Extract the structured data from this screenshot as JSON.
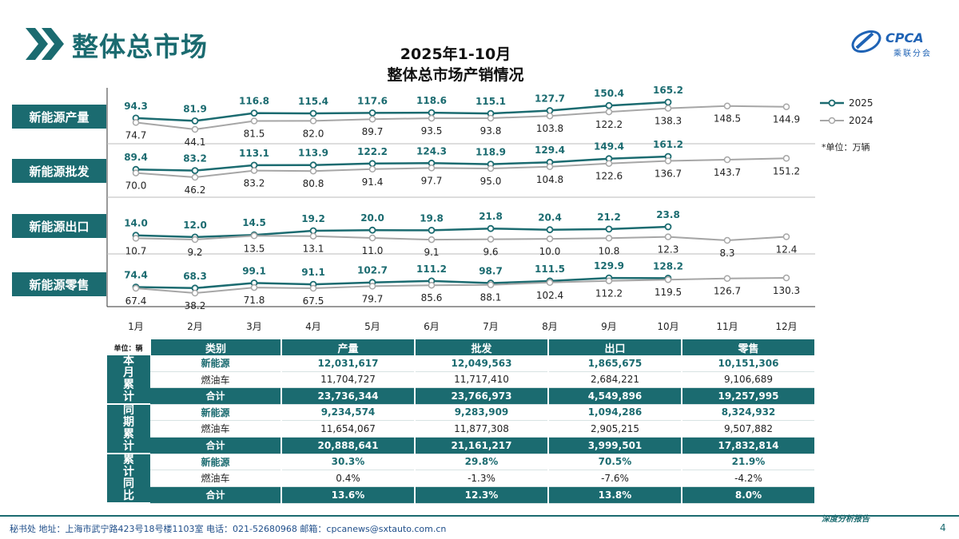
{
  "page": {
    "title": "整体总市场",
    "logo_text": "CPCA",
    "logo_sub": "乘联分会",
    "page_number": "4",
    "footer_text": "秘书处   地址：上海市武宁路423号18号楼1103室   电话：021-52680968   邮箱：cpcanews@sxtauto.com.cn",
    "footer_right": "深度分析报告"
  },
  "colors": {
    "primary": "#1b6b70",
    "series_2025": "#1b6b70",
    "series_2024": "#a6a6a6"
  },
  "chart_data": {
    "type": "line",
    "title_line1": "2025年1-10月",
    "title_line2": "整体总市场产销情况",
    "unit_note": "*单位：万辆",
    "categories": [
      "1月",
      "2月",
      "3月",
      "4月",
      "5月",
      "6月",
      "7月",
      "8月",
      "9月",
      "10月",
      "11月",
      "12月"
    ],
    "legend": [
      "2025",
      "2024"
    ],
    "panels": [
      {
        "label": "新能源产量",
        "series": [
          {
            "name": "2025",
            "values": [
              94.3,
              81.9,
              116.8,
              115.4,
              117.6,
              118.6,
              115.1,
              127.7,
              150.4,
              165.2
            ]
          },
          {
            "name": "2024",
            "values": [
              74.7,
              44.1,
              81.5,
              82.0,
              89.7,
              93.5,
              93.8,
              103.8,
              122.2,
              138.3,
              148.5,
              144.9
            ]
          }
        ]
      },
      {
        "label": "新能源批发",
        "series": [
          {
            "name": "2025",
            "values": [
              89.4,
              83.2,
              113.1,
              113.9,
              122.2,
              124.3,
              118.9,
              129.4,
              149.4,
              161.2
            ]
          },
          {
            "name": "2024",
            "values": [
              70.0,
              46.2,
              83.2,
              80.8,
              91.4,
              97.7,
              95.0,
              104.8,
              122.6,
              136.7,
              143.7,
              151.2
            ]
          }
        ]
      },
      {
        "label": "新能源出口",
        "series": [
          {
            "name": "2025",
            "values": [
              14.0,
              12.0,
              14.5,
              19.2,
              20.0,
              19.8,
              21.8,
              20.4,
              21.2,
              23.8
            ]
          },
          {
            "name": "2024",
            "values": [
              10.7,
              9.2,
              13.5,
              13.1,
              11.0,
              9.1,
              9.6,
              10.0,
              10.8,
              12.3,
              8.3,
              12.4
            ]
          }
        ]
      },
      {
        "label": "新能源零售",
        "series": [
          {
            "name": "2025",
            "values": [
              74.4,
              68.3,
              99.1,
              91.1,
              102.7,
              111.2,
              98.7,
              111.5,
              129.9,
              128.2
            ]
          },
          {
            "name": "2024",
            "values": [
              67.4,
              38.2,
              71.8,
              67.5,
              79.7,
              85.6,
              88.1,
              102.4,
              112.2,
              119.5,
              126.7,
              130.3
            ]
          }
        ]
      }
    ]
  },
  "table": {
    "unit": "单位：辆",
    "headers": [
      "类别",
      "产量",
      "批发",
      "出口",
      "零售"
    ],
    "groups": [
      {
        "label": "本月累计",
        "rows": [
          {
            "type": "新能源",
            "values": [
              "12,031,617",
              "12,049,563",
              "1,865,675",
              "10,151,306"
            ]
          },
          {
            "type": "燃油车",
            "values": [
              "11,704,727",
              "11,717,410",
              "2,684,221",
              "9,106,689"
            ]
          },
          {
            "type": "合计",
            "values": [
              "23,736,344",
              "23,766,973",
              "4,549,896",
              "19,257,995"
            ]
          }
        ]
      },
      {
        "label": "同期累计",
        "rows": [
          {
            "type": "新能源",
            "values": [
              "9,234,574",
              "9,283,909",
              "1,094,286",
              "8,324,932"
            ]
          },
          {
            "type": "燃油车",
            "values": [
              "11,654,067",
              "11,877,308",
              "2,905,215",
              "9,507,882"
            ]
          },
          {
            "type": "合计",
            "values": [
              "20,888,641",
              "21,161,217",
              "3,999,501",
              "17,832,814"
            ]
          }
        ]
      },
      {
        "label": "累计同比",
        "rows": [
          {
            "type": "新能源",
            "values": [
              "30.3%",
              "29.8%",
              "70.5%",
              "21.9%"
            ]
          },
          {
            "type": "燃油车",
            "values": [
              "0.4%",
              "-1.3%",
              "-7.6%",
              "-4.2%"
            ]
          },
          {
            "type": "合计",
            "values": [
              "13.6%",
              "12.3%",
              "13.8%",
              "8.0%"
            ]
          }
        ]
      }
    ]
  }
}
